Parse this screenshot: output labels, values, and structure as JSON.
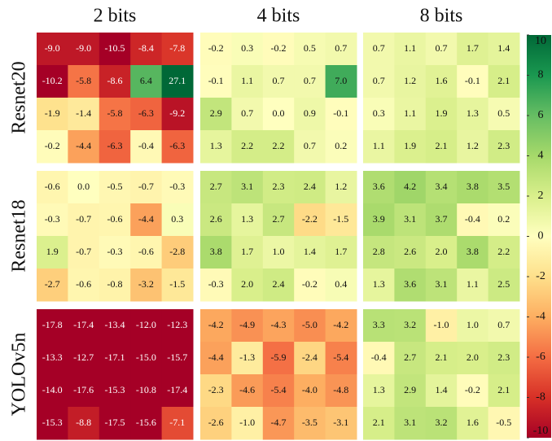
{
  "chart_data": {
    "type": "heatmap",
    "columns": [
      "2 bits",
      "4 bits",
      "8 bits"
    ],
    "rows": [
      "Resnet20",
      "Resnet18",
      "YOLOv5n"
    ],
    "zlim": [
      -10,
      10
    ],
    "colorbar_ticks": [
      10,
      8,
      6,
      4,
      2,
      0,
      -2,
      -4,
      -6,
      -8,
      -10
    ],
    "colors": [
      "#a50026",
      "#d73027",
      "#f46d43",
      "#fdae61",
      "#fee08b",
      "#ffffbf",
      "#d9ef8b",
      "#a6d96a",
      "#66bd63",
      "#1a9850",
      "#006837"
    ],
    "panels": [
      [
        {
          "values": [
            [
              -9.0,
              -9.0,
              -10.5,
              -8.4,
              -7.8
            ],
            [
              -10.2,
              -5.8,
              -8.6,
              6.4,
              27.1
            ],
            [
              -1.9,
              -1.4,
              -5.8,
              -6.3,
              -9.2
            ],
            [
              -0.2,
              -4.4,
              -6.3,
              -0.4,
              -6.3
            ]
          ],
          "value_labels": [
            [
              "-9.0",
              "-9.0",
              "-10.5",
              "-8.4",
              "-7.8"
            ],
            [
              "-10.2",
              "-5.8",
              "-8.6",
              "6.4",
              "27.1"
            ],
            [
              "-1.9",
              "-1.4",
              "-5.8",
              "-6.3",
              "-9.2"
            ],
            [
              "-0.2",
              "-4.4",
              "-6.3",
              "-0.4",
              "-6.3"
            ]
          ]
        },
        {
          "values": [
            [
              -0.2,
              0.3,
              -0.2,
              0.5,
              0.7
            ],
            [
              -0.1,
              1.1,
              0.7,
              0.7,
              7.0
            ],
            [
              2.9,
              0.7,
              0.0,
              0.9,
              -0.1
            ],
            [
              1.3,
              2.2,
              2.2,
              0.7,
              0.2
            ]
          ],
          "value_labels": [
            [
              "-0.2",
              "0.3",
              "-0.2",
              "0.5",
              "0.7"
            ],
            [
              "-0.1",
              "1.1",
              "0.7",
              "0.7",
              "7.0"
            ],
            [
              "2.9",
              "0.7",
              "0.0",
              "0.9",
              "-0.1"
            ],
            [
              "1.3",
              "2.2",
              "2.2",
              "0.7",
              "0.2"
            ]
          ]
        },
        {
          "values": [
            [
              0.7,
              1.1,
              0.7,
              1.7,
              1.4
            ],
            [
              0.7,
              1.2,
              1.6,
              -0.1,
              2.1
            ],
            [
              0.3,
              1.1,
              1.9,
              1.3,
              0.5
            ],
            [
              1.1,
              1.9,
              2.1,
              1.2,
              2.3
            ]
          ],
          "value_labels": [
            [
              "0.7",
              "1.1",
              "0.7",
              "1.7",
              "1.4"
            ],
            [
              "0.7",
              "1.2",
              "1.6",
              "-0.1",
              "2.1"
            ],
            [
              "0.3",
              "1.1",
              "1.9",
              "1.3",
              "0.5"
            ],
            [
              "1.1",
              "1.9",
              "2.1",
              "1.2",
              "2.3"
            ]
          ]
        }
      ],
      [
        {
          "values": [
            [
              -0.6,
              0.0,
              -0.5,
              -0.7,
              -0.3
            ],
            [
              -0.3,
              -0.7,
              -0.6,
              -4.4,
              0.3
            ],
            [
              1.9,
              -0.7,
              -0.3,
              -0.6,
              -2.8
            ],
            [
              -2.7,
              -0.6,
              -0.8,
              -3.2,
              -1.5
            ]
          ],
          "value_labels": [
            [
              "-0.6",
              "0.0",
              "-0.5",
              "-0.7",
              "-0.3"
            ],
            [
              "-0.3",
              "-0.7",
              "-0.6",
              "-4.4",
              "0.3"
            ],
            [
              "1.9",
              "-0.7",
              "-0.3",
              "-0.6",
              "-2.8"
            ],
            [
              "-2.7",
              "-0.6",
              "-0.8",
              "-3.2",
              "-1.5"
            ]
          ]
        },
        {
          "values": [
            [
              2.7,
              3.1,
              2.3,
              2.4,
              1.2
            ],
            [
              2.6,
              1.3,
              2.7,
              -2.2,
              -1.5
            ],
            [
              3.8,
              1.7,
              1.0,
              1.4,
              1.7
            ],
            [
              -0.3,
              2.0,
              2.4,
              -0.2,
              0.4
            ]
          ],
          "value_labels": [
            [
              "2.7",
              "3.1",
              "2.3",
              "2.4",
              "1.2"
            ],
            [
              "2.6",
              "1.3",
              "2.7",
              "-2.2",
              "-1.5"
            ],
            [
              "3.8",
              "1.7",
              "1.0",
              "1.4",
              "1.7"
            ],
            [
              "-0.3",
              "2.0",
              "2.4",
              "-0.2",
              "0.4"
            ]
          ]
        },
        {
          "values": [
            [
              3.6,
              4.2,
              3.4,
              3.8,
              3.5
            ],
            [
              3.9,
              3.1,
              3.7,
              -0.4,
              0.2
            ],
            [
              2.8,
              2.6,
              2.0,
              3.8,
              2.2
            ],
            [
              1.3,
              3.6,
              3.1,
              1.1,
              2.5
            ]
          ],
          "value_labels": [
            [
              "3.6",
              "4.2",
              "3.4",
              "3.8",
              "3.5"
            ],
            [
              "3.9",
              "3.1",
              "3.7",
              "-0.4",
              "0.2"
            ],
            [
              "2.8",
              "2.6",
              "2.0",
              "3.8",
              "2.2"
            ],
            [
              "1.3",
              "3.6",
              "3.1",
              "1.1",
              "2.5"
            ]
          ]
        }
      ],
      [
        {
          "values": [
            [
              -17.8,
              -17.4,
              -13.4,
              -12.0,
              -12.3
            ],
            [
              -13.3,
              -12.7,
              -17.1,
              -15.0,
              -15.7
            ],
            [
              -14.0,
              -17.6,
              -15.3,
              -10.8,
              -17.4
            ],
            [
              -15.3,
              -8.8,
              -17.5,
              -15.6,
              -7.1
            ]
          ],
          "value_labels": [
            [
              "-17.8",
              "-17.4",
              "-13.4",
              "-12.0",
              "-12.3"
            ],
            [
              "-13.3",
              "-12.7",
              "-17.1",
              "-15.0",
              "-15.7"
            ],
            [
              "-14.0",
              "-17.6",
              "-15.3",
              "-10.8",
              "-17.4"
            ],
            [
              "-15.3",
              "-8.8",
              "-17.5",
              "-15.6",
              "-7.1"
            ]
          ]
        },
        {
          "values": [
            [
              -4.2,
              -4.9,
              -4.3,
              -5.0,
              -4.2
            ],
            [
              -4.4,
              -1.3,
              -5.9,
              -2.4,
              -5.4
            ],
            [
              -2.3,
              -4.6,
              -5.4,
              -4.0,
              -4.8
            ],
            [
              -2.6,
              -1.0,
              -4.7,
              -3.5,
              -3.1
            ]
          ],
          "value_labels": [
            [
              "-4.2",
              "-4.9",
              "-4.3",
              "-5.0",
              "-4.2"
            ],
            [
              "-4.4",
              "-1.3",
              "-5.9",
              "-2.4",
              "-5.4"
            ],
            [
              "-2.3",
              "-4.6",
              "-5.4",
              "-4.0",
              "-4.8"
            ],
            [
              "-2.6",
              "-1.0",
              "-4.7",
              "-3.5",
              "-3.1"
            ]
          ]
        },
        {
          "values": [
            [
              3.3,
              3.2,
              -1.0,
              1.0,
              0.7
            ],
            [
              -0.4,
              2.7,
              2.1,
              2.0,
              2.3
            ],
            [
              1.3,
              2.9,
              1.4,
              -0.2,
              2.1
            ],
            [
              2.1,
              3.1,
              3.2,
              1.6,
              -0.5
            ]
          ],
          "value_labels": [
            [
              "3.3",
              "3.2",
              "-1.0",
              "1.0",
              "0.7"
            ],
            [
              "-0.4",
              "2.7",
              "2.1",
              "2.0",
              "2.3"
            ],
            [
              "1.3",
              "2.9",
              "1.4",
              "-0.2",
              "2.1"
            ],
            [
              "2.1",
              "3.1",
              "3.2",
              "1.6",
              "-0.5"
            ]
          ]
        }
      ]
    ]
  }
}
